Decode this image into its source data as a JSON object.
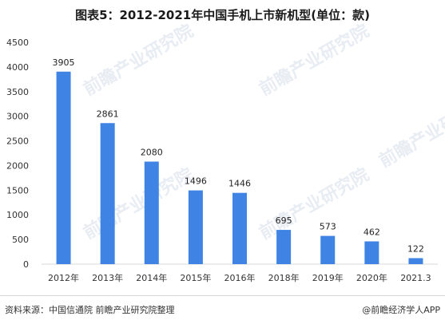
{
  "title": "图表5：2012-2021年中国手机上市新机型(单位：款)",
  "source": "资料来源：中国信通院 前瞻产业研究院整理",
  "credit": "@前瞻经济学人APP",
  "watermark": "前瞻产业研究院",
  "colors": {
    "bar": "#3f84e5",
    "axis": "#d9d9d9",
    "text": "#333333"
  },
  "chart_data": {
    "type": "bar",
    "title": "图表5：2012-2021年中国手机上市新机型(单位：款)",
    "categories": [
      "2012年",
      "2013年",
      "2014年",
      "2015年",
      "2016年",
      "2018年",
      "2019年",
      "2020年",
      "2021.3"
    ],
    "values": [
      3905,
      2861,
      2080,
      1496,
      1446,
      695,
      573,
      462,
      122
    ],
    "xlabel": "",
    "ylabel": "",
    "ylim": [
      0,
      4500
    ],
    "yticks": [
      0,
      500,
      1000,
      1500,
      2000,
      2500,
      3000,
      3500,
      4000,
      4500
    ],
    "grid": false,
    "legend": "none"
  }
}
